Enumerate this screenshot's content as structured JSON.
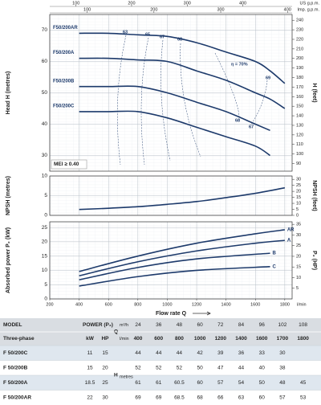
{
  "chart_data": [
    {
      "type": "line",
      "y_label": "Head H (metres)",
      "y2_label": "H (feet)",
      "xlim": [
        200,
        1850
      ],
      "ylim": [
        25,
        75
      ],
      "yticks": [
        30,
        40,
        50,
        60,
        70
      ],
      "y2lim": [
        82.02,
        246.06
      ],
      "y2ticks": [
        90,
        100,
        110,
        120,
        130,
        140,
        150,
        160,
        170,
        180,
        190,
        200,
        210,
        220,
        230,
        240
      ],
      "grid": true,
      "top_axes": [
        {
          "label": "US g.p.m.",
          "lim": [
            52.83,
            488.7
          ],
          "ticks": [
            100,
            200,
            300,
            400
          ]
        },
        {
          "label": "Imp. g.p.m.",
          "lim": [
            43.99,
            406.9
          ],
          "ticks": [
            100,
            200,
            300,
            400
          ]
        }
      ],
      "series": [
        {
          "name": "F50/200AR",
          "color": "#1d3a6b",
          "x": [
            400,
            600,
            800,
            1000,
            1200,
            1400,
            1600,
            1700,
            1800
          ],
          "values": [
            69,
            69,
            68.5,
            68,
            66,
            63,
            60,
            57,
            53
          ]
        },
        {
          "name": "F50/200A",
          "color": "#1d3a6b",
          "x": [
            400,
            600,
            800,
            1000,
            1200,
            1400,
            1600,
            1700,
            1800
          ],
          "values": [
            61,
            61,
            60.5,
            60,
            57,
            54,
            50,
            48,
            45
          ]
        },
        {
          "name": "F50/200B",
          "color": "#1d3a6b",
          "x": [
            400,
            600,
            800,
            1000,
            1200,
            1400,
            1600,
            1700
          ],
          "values": [
            52,
            52,
            52,
            50,
            47,
            44,
            40,
            38
          ]
        },
        {
          "name": "F50/200C",
          "color": "#1d3a6b",
          "x": [
            400,
            600,
            800,
            1000,
            1200,
            1400,
            1600,
            1700
          ],
          "values": [
            44,
            44,
            44,
            42,
            39,
            36,
            33,
            30
          ]
        }
      ],
      "annotations": [
        "63",
        "65",
        "67",
        "68",
        "η = 70%",
        "69",
        "68",
        "67"
      ],
      "note": "MEI ≥ 0.40"
    },
    {
      "type": "line",
      "y_label": "NPSH (metres)",
      "y2_label": "NPSH (feet)",
      "xlim": [
        200,
        1850
      ],
      "ylim": [
        0,
        10
      ],
      "yticks": [
        0,
        5,
        10
      ],
      "y2lim": [
        0,
        32.8
      ],
      "y2ticks": [
        0,
        5,
        10,
        15,
        20,
        25,
        30
      ],
      "grid": true,
      "series": [
        {
          "name": "NPSH",
          "color": "#1d3a6b",
          "x": [
            400,
            600,
            800,
            1000,
            1200,
            1400,
            1600,
            1800
          ],
          "values": [
            1.5,
            1.8,
            2.2,
            2.8,
            3.5,
            4.5,
            5.6,
            7
          ]
        }
      ]
    },
    {
      "type": "line",
      "y_label": "Absorbed power P₂ (kW)",
      "y2_label": "P₂ (HP)",
      "x_label": "Flow rate Q",
      "x_unit": "l/min",
      "xlim": [
        200,
        1850
      ],
      "xticks": [
        200,
        400,
        600,
        800,
        1000,
        1200,
        1400,
        1600,
        1800
      ],
      "ylim": [
        0,
        27
      ],
      "yticks": [
        0,
        5,
        10,
        15,
        20,
        25
      ],
      "y2lim": [
        0,
        36.2
      ],
      "y2ticks": [
        5,
        10,
        15,
        20,
        25,
        30,
        35
      ],
      "grid": true,
      "series": [
        {
          "name": "AR",
          "color": "#1d3a6b",
          "x": [
            400,
            800,
            1200,
            1600,
            1800
          ],
          "values": [
            9.6,
            15,
            19.5,
            22.8,
            24.2
          ]
        },
        {
          "name": "A",
          "color": "#1d3a6b",
          "x": [
            400,
            800,
            1200,
            1600,
            1800
          ],
          "values": [
            8.1,
            13,
            16.8,
            19.5,
            20.5
          ]
        },
        {
          "name": "B",
          "color": "#1d3a6b",
          "x": [
            400,
            800,
            1200,
            1700
          ],
          "values": [
            6.7,
            11,
            14,
            16
          ]
        },
        {
          "name": "C",
          "color": "#1d3a6b",
          "x": [
            400,
            800,
            1200,
            1700
          ],
          "values": [
            4.5,
            7.8,
            10,
            11.3
          ]
        }
      ]
    }
  ],
  "table": {
    "model_header": "MODEL",
    "phase_header": "Three-phase",
    "power_header": "POWER (P₂)",
    "kw_header": "kW",
    "hp_header": "HP",
    "q_header": "Q",
    "q_units": [
      "m³/h",
      "l/min"
    ],
    "h_header": "H",
    "h_unit": "metres",
    "flow_m3h": [
      24,
      36,
      48,
      60,
      72,
      84,
      96,
      102,
      108
    ],
    "flow_lmin": [
      400,
      600,
      800,
      1000,
      1200,
      1400,
      1600,
      1700,
      1800
    ],
    "rows": [
      {
        "model": "F 50/200C",
        "kw": 11,
        "hp": 15,
        "head": [
          44,
          44,
          44,
          42,
          39,
          36,
          33,
          30,
          null
        ]
      },
      {
        "model": "F 50/200B",
        "kw": 15,
        "hp": 20,
        "head": [
          52,
          52,
          52,
          50,
          47,
          44,
          40,
          38,
          null
        ]
      },
      {
        "model": "F 50/200A",
        "kw": 18.5,
        "hp": 25,
        "head": [
          61,
          61,
          60.5,
          60,
          57,
          54,
          50,
          48,
          45
        ]
      },
      {
        "model": "F 50/200AR",
        "kw": 22,
        "hp": 30,
        "head": [
          69,
          69,
          68.5,
          68,
          66,
          63,
          60,
          57,
          53
        ]
      }
    ]
  }
}
